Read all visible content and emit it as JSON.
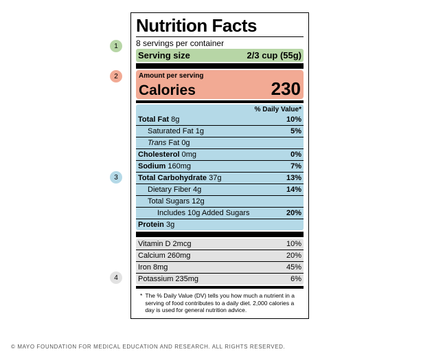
{
  "callouts": {
    "c1": "1",
    "c2": "2",
    "c3": "3",
    "c4": "4"
  },
  "colors": {
    "green": "#b7d6a6",
    "salmon": "#f2aa94",
    "blue": "#b4d9e7",
    "grey": "#e2e2e2"
  },
  "label": {
    "title": "Nutrition Facts",
    "servings_per": "8 servings per container",
    "serving_size_label": "Serving size",
    "serving_size_value": "2/3 cup (55g)",
    "amount_per": "Amount per serving",
    "calories_label": "Calories",
    "calories_value": "230",
    "dv_header": "% Daily Value*",
    "nutrients": [
      {
        "name": "Total Fat",
        "amount": "8g",
        "dv": "10%",
        "bold": true,
        "indent": 0
      },
      {
        "name": "Saturated Fat",
        "amount": "1g",
        "dv": "5%",
        "bold": false,
        "indent": 1
      },
      {
        "name": "Trans Fat",
        "amount": "0g",
        "dv": "",
        "bold": false,
        "indent": 1,
        "italic_first": "Trans"
      },
      {
        "name": "Cholesterol",
        "amount": "0mg",
        "dv": "0%",
        "bold": true,
        "indent": 0
      },
      {
        "name": "Sodium",
        "amount": "160mg",
        "dv": "7%",
        "bold": true,
        "indent": 0
      },
      {
        "name": "Total Carbohydrate",
        "amount": "37g",
        "dv": "13%",
        "bold": true,
        "indent": 0
      },
      {
        "name": "Dietary Fiber",
        "amount": "4g",
        "dv": "14%",
        "bold": false,
        "indent": 1
      },
      {
        "name": "Total Sugars",
        "amount": "12g",
        "dv": "",
        "bold": false,
        "indent": 1
      },
      {
        "name": "Includes 10g Added Sugars",
        "amount": "",
        "dv": "20%",
        "bold": false,
        "indent": 2
      },
      {
        "name": "Protein",
        "amount": "3g",
        "dv": "",
        "bold": true,
        "indent": 0
      }
    ],
    "vitamins": [
      {
        "name": "Vitamin D",
        "amount": "2mcg",
        "dv": "10%"
      },
      {
        "name": "Calcium",
        "amount": "260mg",
        "dv": "20%"
      },
      {
        "name": "Iron",
        "amount": "8mg",
        "dv": "45%"
      },
      {
        "name": "Potassium",
        "amount": "235mg",
        "dv": "6%"
      }
    ],
    "footnote": "The % Daily Value (DV) tells you how much a nutrient in a serving of food contributes to a daily diet. 2,000 calories a day is used for general nutrition advice."
  },
  "copyright": "© MAYO FOUNDATION FOR MEDICAL EDUCATION AND RESEARCH. ALL RIGHTS RESERVED."
}
